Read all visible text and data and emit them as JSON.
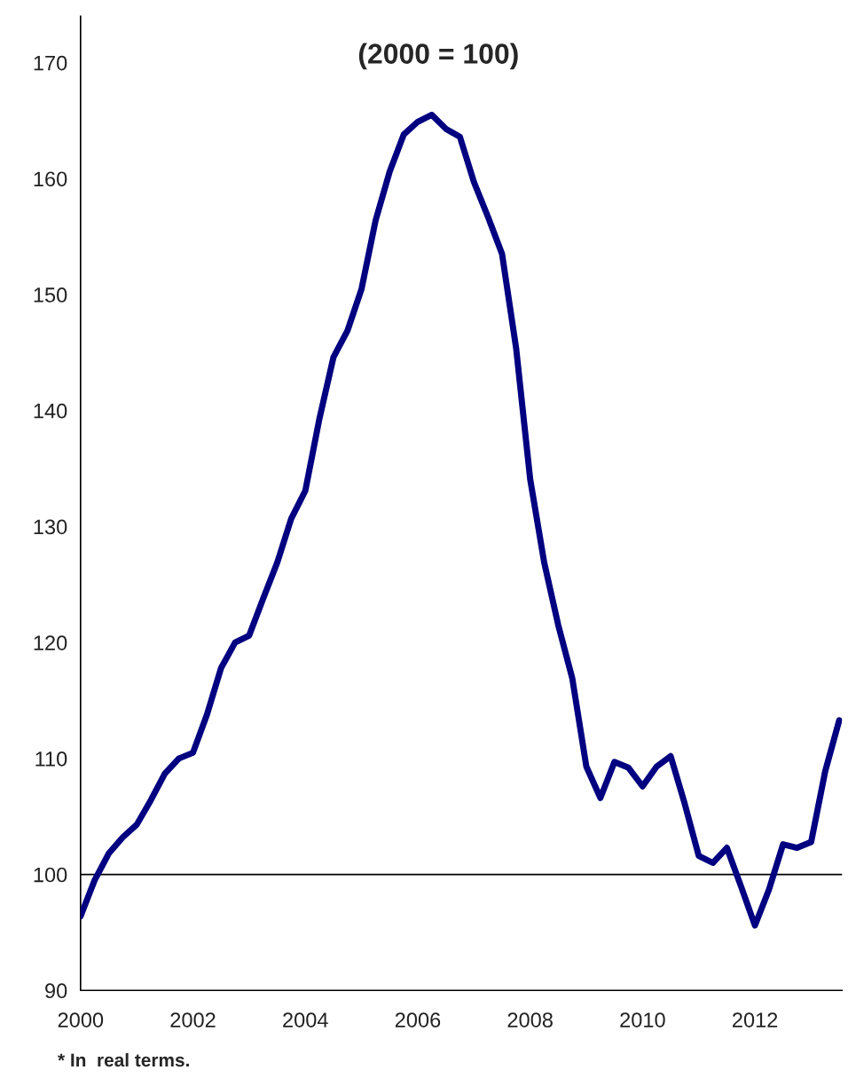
{
  "chart_data": {
    "type": "line",
    "title": "(2000 = 100)",
    "x": [
      2000,
      2000.25,
      2000.5,
      2000.75,
      2001,
      2001.25,
      2001.5,
      2001.75,
      2002,
      2002.25,
      2002.5,
      2002.75,
      2003,
      2003.25,
      2003.5,
      2003.75,
      2004,
      2004.25,
      2004.5,
      2004.75,
      2005,
      2005.25,
      2005.5,
      2005.75,
      2006,
      2006.25,
      2006.5,
      2006.75,
      2007,
      2007.25,
      2007.5,
      2007.75,
      2008,
      2008.25,
      2008.5,
      2008.75,
      2009,
      2009.25,
      2009.5,
      2009.75,
      2010,
      2010.25,
      2010.5,
      2010.75,
      2011,
      2011.25,
      2011.5,
      2011.75,
      2012,
      2012.25,
      2012.5,
      2012.75,
      2013,
      2013.25,
      2013.5
    ],
    "series": [
      {
        "color": "#000080",
        "values": [
          96.4,
          99.5,
          101.8,
          103.2,
          104.3,
          106.4,
          108.7,
          110.0,
          110.5,
          113.8,
          117.8,
          120.0,
          120.6,
          123.8,
          126.9,
          130.7,
          133.1,
          139.3,
          144.6,
          146.9,
          150.5,
          156.4,
          160.6,
          163.8,
          164.9,
          165.5,
          164.3,
          163.6,
          159.7,
          156.7,
          153.5,
          145.4,
          134.1,
          126.9,
          121.5,
          116.9,
          109.3,
          106.6,
          109.7,
          109.2,
          107.6,
          109.3,
          110.2,
          106.1,
          101.6,
          101.0,
          102.3,
          99.0,
          95.6,
          98.7,
          102.6,
          102.3,
          102.8,
          108.9,
          113.3
        ]
      }
    ],
    "xlim": [
      2000,
      2013.55
    ],
    "xticks": [
      2000,
      2002,
      2004,
      2006,
      2008,
      2010,
      2012
    ],
    "ylim": [
      90,
      174
    ],
    "yticks": [
      90,
      100,
      110,
      120,
      130,
      140,
      150,
      160,
      170
    ],
    "ref_lines": [
      {
        "axis": "y",
        "value": 100,
        "color": "#000000"
      }
    ],
    "grid": false,
    "marker": "none",
    "line_style": "solid",
    "annotations": [
      "* In  real terms."
    ]
  }
}
